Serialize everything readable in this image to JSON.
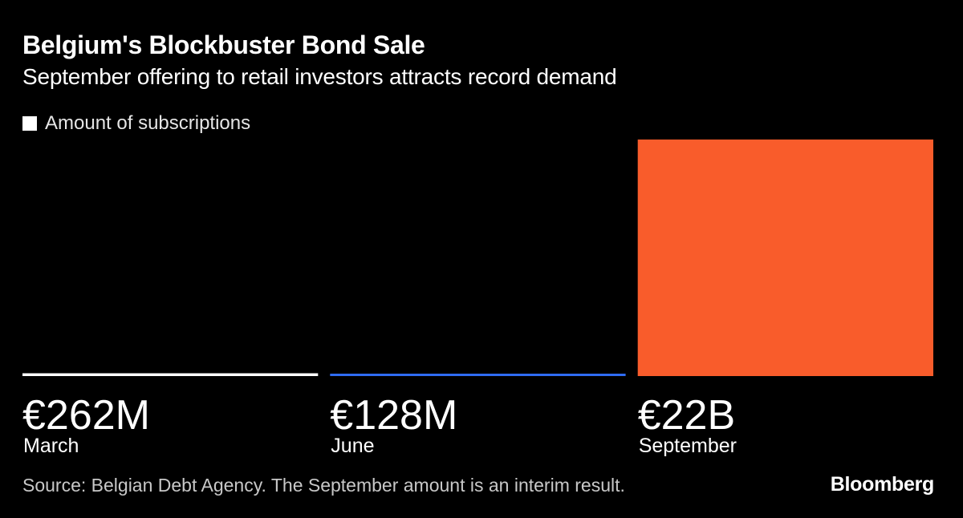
{
  "chart_data": {
    "type": "bar",
    "title": "Belgium's Blockbuster Bond Sale",
    "subtitle": "September offering to retail investors attracts record demand",
    "legend": {
      "label": "Amount of subscriptions",
      "placement": "top-left"
    },
    "categories": [
      "March",
      "June",
      "September"
    ],
    "values": [
      0.262,
      0.128,
      22
    ],
    "value_unit": "EUR billions",
    "value_labels": [
      "€262M",
      "€128M",
      "€22B"
    ],
    "colors": [
      "#ffffff",
      "#2f6cf2",
      "#f95c2b"
    ],
    "xlabel": "",
    "ylabel": "",
    "ylim": [
      0,
      22
    ],
    "grid": false
  },
  "footer": {
    "source": "Source: Belgian Debt Agency. The September amount is an interim result.",
    "brand": "Bloomberg"
  },
  "colors": {
    "background": "#000000",
    "text": "#ffffff"
  }
}
